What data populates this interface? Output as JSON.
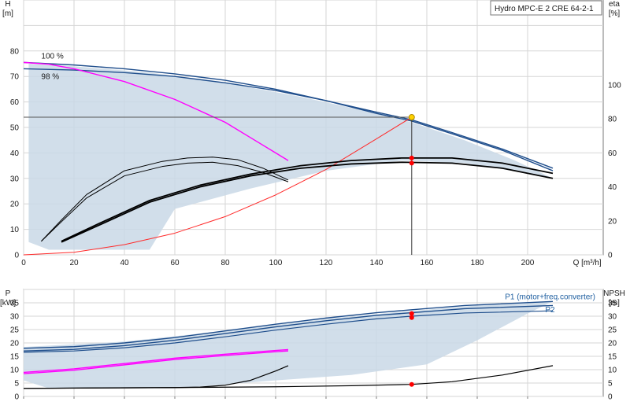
{
  "chart_data": [
    {
      "type": "line",
      "title": "Hydro MPC-E 2 CRE 64-2-1",
      "xlabel": "Q [m³/h]",
      "ylabel_left": [
        "H",
        "[m]"
      ],
      "ylabel_right": [
        "eta",
        "[%]"
      ],
      "xlim": [
        0,
        230
      ],
      "ylim": [
        0,
        100
      ],
      "ylim_right": [
        0,
        150
      ],
      "x_ticks": [
        0,
        20,
        40,
        60,
        80,
        100,
        120,
        140,
        160,
        180,
        200
      ],
      "y_ticks": [
        0,
        10,
        20,
        30,
        40,
        50,
        60,
        70,
        80
      ],
      "y_ticks_right": [
        0,
        20,
        40,
        60,
        80,
        100
      ],
      "grid": true,
      "operating_point": {
        "x": 154,
        "y": 54
      },
      "eta_points": [
        {
          "x": 154,
          "eta": 57
        },
        {
          "x": 154,
          "eta": 54
        }
      ],
      "labels": [
        {
          "text": "100 %",
          "x": 7,
          "y": 77
        },
        {
          "text": "98 %",
          "x": 7,
          "y": 69
        }
      ],
      "envelope": [
        [
          2,
          75
        ],
        [
          20,
          74
        ],
        [
          50,
          71.5
        ],
        [
          80,
          67.5
        ],
        [
          110,
          62
        ],
        [
          140,
          55.5
        ],
        [
          154,
          52
        ],
        [
          175,
          45
        ],
        [
          195,
          37
        ],
        [
          210,
          30
        ],
        [
          200,
          32
        ],
        [
          175,
          36
        ],
        [
          150,
          37
        ],
        [
          120,
          33
        ],
        [
          90,
          26
        ],
        [
          60,
          18
        ],
        [
          50,
          2
        ],
        [
          10,
          2
        ],
        [
          2,
          5
        ]
      ],
      "series": [
        {
          "role": "pump-curve",
          "color": "#1f4e8c",
          "width": 1.4,
          "points": [
            [
              0,
              75.5
            ],
            [
              20,
              74.5
            ],
            [
              40,
              73
            ],
            [
              60,
              71
            ],
            [
              80,
              68.5
            ],
            [
              100,
              65
            ],
            [
              120,
              60.5
            ],
            [
              140,
              55.5
            ],
            [
              154,
              52.5
            ],
            [
              170,
              47.5
            ],
            [
              190,
              41
            ],
            [
              210,
              33
            ]
          ]
        },
        {
          "role": "pump-curve",
          "color": "#1f4e8c",
          "width": 1.4,
          "points": [
            [
              0,
              73
            ],
            [
              20,
              72.5
            ],
            [
              40,
              71.5
            ],
            [
              60,
              70
            ],
            [
              80,
              67.5
            ],
            [
              100,
              64.5
            ],
            [
              120,
              60.5
            ],
            [
              140,
              56
            ],
            [
              154,
              53
            ],
            [
              170,
              48
            ],
            [
              190,
              41.5
            ],
            [
              210,
              34
            ]
          ]
        },
        {
          "role": "max-curve",
          "color": "#ff00ff",
          "width": 1.4,
          "points": [
            [
              0,
              75.5
            ],
            [
              10,
              74.8
            ],
            [
              20,
              73
            ],
            [
              40,
              68
            ],
            [
              60,
              61
            ],
            [
              80,
              52
            ],
            [
              90,
              46
            ],
            [
              100,
              40
            ],
            [
              105,
              37
            ]
          ]
        },
        {
          "role": "system-curve",
          "color": "#ff2a2a",
          "width": 1,
          "points": [
            [
              0,
              0
            ],
            [
              20,
              1
            ],
            [
              40,
              4
            ],
            [
              60,
              8.5
            ],
            [
              80,
              15
            ],
            [
              100,
              23.5
            ],
            [
              120,
              33.5
            ],
            [
              140,
              45.5
            ],
            [
              154,
              54
            ]
          ]
        },
        {
          "role": "eta",
          "color": "#000000",
          "width": 1,
          "points": [
            [
              7,
              8
            ],
            [
              15,
              20.5
            ],
            [
              25,
              35.5
            ],
            [
              40,
              49.5
            ],
            [
              55,
              55
            ],
            [
              65,
              57
            ],
            [
              75,
              57.5
            ],
            [
              85,
              56
            ],
            [
              95,
              51
            ],
            [
              105,
              44
            ]
          ]
        },
        {
          "role": "eta",
          "color": "#000000",
          "width": 1,
          "points": [
            [
              7,
              8
            ],
            [
              15,
              19.5
            ],
            [
              25,
              33.5
            ],
            [
              40,
              46.5
            ],
            [
              55,
              52
            ],
            [
              65,
              54
            ],
            [
              75,
              54.5
            ],
            [
              85,
              52.5
            ],
            [
              95,
              48.5
            ],
            [
              105,
              43
            ]
          ]
        },
        {
          "role": "eta",
          "color": "#000000",
          "width": 1.8,
          "points": [
            [
              15,
              8
            ],
            [
              30,
              18.5
            ],
            [
              50,
              32
            ],
            [
              70,
              41
            ],
            [
              90,
              47.5
            ],
            [
              110,
              52.5
            ],
            [
              130,
              55.5
            ],
            [
              150,
              57
            ],
            [
              170,
              57
            ],
            [
              190,
              54
            ],
            [
              210,
              48
            ]
          ]
        },
        {
          "role": "eta",
          "color": "#000000",
          "width": 1.8,
          "points": [
            [
              15,
              7.5
            ],
            [
              30,
              17.5
            ],
            [
              50,
              31
            ],
            [
              70,
              40
            ],
            [
              90,
              46.5
            ],
            [
              110,
              51
            ],
            [
              130,
              53.5
            ],
            [
              150,
              54.5
            ],
            [
              170,
              54
            ],
            [
              190,
              51
            ],
            [
              210,
              45
            ]
          ]
        }
      ]
    },
    {
      "type": "line",
      "xlim": [
        0,
        230
      ],
      "ylim": [
        0,
        40
      ],
      "ylabel_left": [
        "P",
        "[kW]"
      ],
      "ylabel_right": [
        "NPSH",
        "[m]"
      ],
      "y_ticks": [
        0,
        5,
        10,
        15,
        20,
        25,
        30,
        35
      ],
      "y_ticks_right": [
        0,
        5,
        10,
        15,
        20,
        25,
        30,
        35
      ],
      "grid": true,
      "labels": [
        {
          "text": "P1 (motor+freq.converter)",
          "x": 191,
          "y": 36.3
        },
        {
          "text": "P2",
          "x": 207,
          "y": 31.5
        }
      ],
      "points_marked": [
        {
          "x": 154,
          "y": 31
        },
        {
          "x": 154,
          "y": 29.5
        },
        {
          "x": 154,
          "y": 4.5
        }
      ],
      "envelope": [
        [
          0,
          18.5
        ],
        [
          40,
          20.5
        ],
        [
          80,
          24.5
        ],
        [
          120,
          29
        ],
        [
          154,
          32
        ],
        [
          180,
          34
        ],
        [
          210,
          35.5
        ],
        [
          200,
          31
        ],
        [
          180,
          21
        ],
        [
          160,
          12
        ],
        [
          130,
          8
        ],
        [
          100,
          6
        ],
        [
          60,
          3
        ],
        [
          10,
          3
        ],
        [
          0,
          6
        ]
      ],
      "series": [
        {
          "role": "P1",
          "color": "#1f4e8c",
          "width": 1.4,
          "points": [
            [
              0,
              18
            ],
            [
              20,
              18.6
            ],
            [
              40,
              20
            ],
            [
              60,
              22
            ],
            [
              80,
              24.5
            ],
            [
              100,
              27
            ],
            [
              120,
              29.3
            ],
            [
              140,
              31.3
            ],
            [
              154,
              32.4
            ],
            [
              175,
              34
            ],
            [
              210,
              35.5
            ]
          ]
        },
        {
          "role": "P1",
          "color": "#1f4e8c",
          "width": 1.4,
          "points": [
            [
              0,
              17
            ],
            [
              20,
              17.6
            ],
            [
              40,
              19
            ],
            [
              60,
              21
            ],
            [
              80,
              23.5
            ],
            [
              100,
              26
            ],
            [
              120,
              28.3
            ],
            [
              140,
              30.3
            ],
            [
              154,
              31.3
            ],
            [
              175,
              32.8
            ],
            [
              210,
              34
            ]
          ]
        },
        {
          "role": "P2",
          "color": "#1f4e8c",
          "width": 1.2,
          "points": [
            [
              0,
              16.5
            ],
            [
              20,
              17
            ],
            [
              40,
              18.2
            ],
            [
              60,
              20
            ],
            [
              80,
              22.3
            ],
            [
              100,
              24.8
            ],
            [
              120,
              27
            ],
            [
              140,
              29
            ],
            [
              154,
              30
            ],
            [
              175,
              31.2
            ],
            [
              210,
              32
            ]
          ]
        },
        {
          "role": "max-power",
          "color": "#ff00ff",
          "width": 1.4,
          "points": [
            [
              0,
              9
            ],
            [
              20,
              10.3
            ],
            [
              40,
              12.3
            ],
            [
              60,
              14.3
            ],
            [
              80,
              15.8
            ],
            [
              100,
              17.2
            ],
            [
              105,
              17.5
            ]
          ]
        },
        {
          "role": "max-power",
          "color": "#ff00ff",
          "width": 1.4,
          "points": [
            [
              0,
              8.5
            ],
            [
              20,
              9.8
            ],
            [
              40,
              11.8
            ],
            [
              60,
              13.8
            ],
            [
              80,
              15.3
            ],
            [
              100,
              16.7
            ],
            [
              105,
              17
            ]
          ]
        },
        {
          "role": "npsh",
          "color": "#000000",
          "width": 1.2,
          "points": [
            [
              0,
              3
            ],
            [
              30,
              3.2
            ],
            [
              60,
              3.3
            ],
            [
              70,
              3.5
            ],
            [
              80,
              4.2
            ],
            [
              90,
              6
            ],
            [
              100,
              9.5
            ],
            [
              105,
              11.5
            ]
          ]
        },
        {
          "role": "npsh",
          "color": "#000000",
          "width": 1.2,
          "points": [
            [
              0,
              3
            ],
            [
              60,
              3.3
            ],
            [
              100,
              3.6
            ],
            [
              130,
              4
            ],
            [
              154,
              4.5
            ],
            [
              170,
              5.5
            ],
            [
              190,
              8
            ],
            [
              210,
              11.5
            ]
          ]
        }
      ]
    }
  ]
}
